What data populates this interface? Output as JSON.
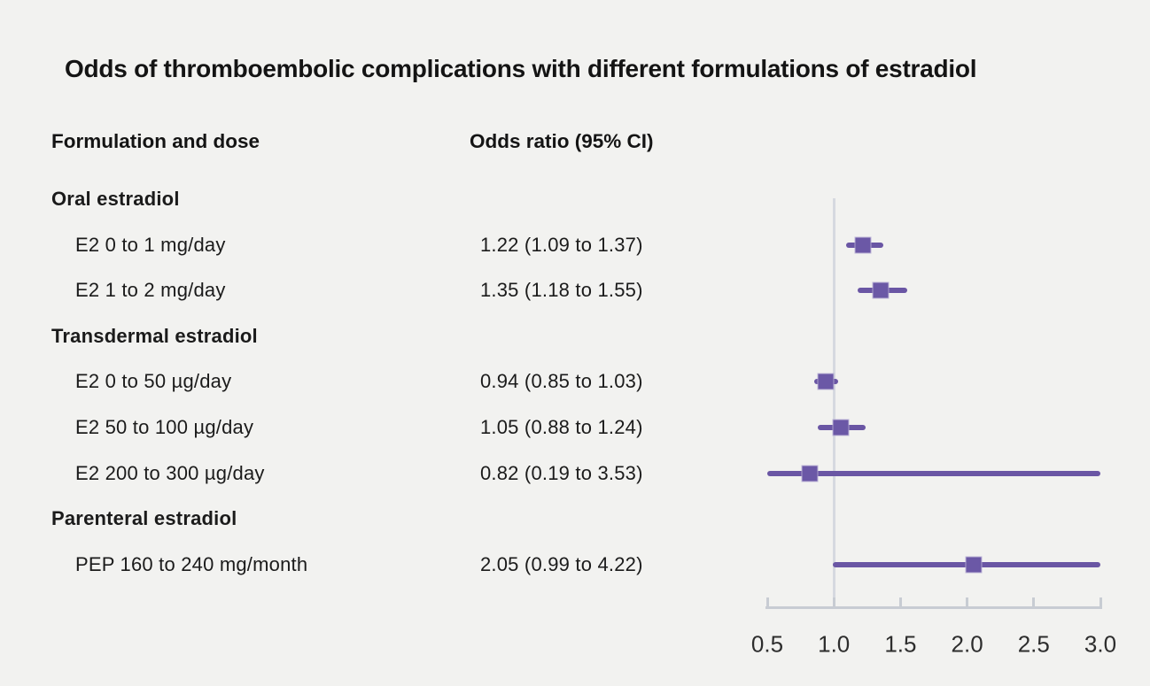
{
  "title": "Odds of thromboembolic complications with different formulations of estradiol",
  "columns": {
    "formulation_header": "Formulation and dose",
    "odds_ratio_header": "Odds ratio (95% CI)"
  },
  "colors": {
    "background": "#f2f2f0",
    "text": "#1b1b1b",
    "marker_purple": "#6b58a6",
    "ci_purple": "#6a56a4",
    "reference_line": "#d6d9e0",
    "axis": "#c8ccd3",
    "tick_label": "#2d2d2d"
  },
  "chart_data": {
    "type": "scatter",
    "subtype": "forest-plot",
    "title": "Odds of thromboembolic complications with different formulations of estradiol",
    "xlabel": "Odds ratio",
    "xlim": [
      0.5,
      3.0
    ],
    "reference_value": 1.0,
    "grid": false,
    "axis_ticks": [
      "0.5",
      "1.0",
      "1.5",
      "2.0",
      "2.5",
      "3.0"
    ],
    "axis_tick_values": [
      0.5,
      1.0,
      1.5,
      2.0,
      2.5,
      3.0
    ],
    "rows": [
      {
        "type": "group",
        "label": "Oral estradiol"
      },
      {
        "type": "item",
        "label": "E2 0 to 1 mg/day",
        "value_text": "1.22 (1.09 to 1.37)",
        "or": 1.22,
        "ci_low": 1.09,
        "ci_high": 1.37
      },
      {
        "type": "item",
        "label": "E2 1 to 2 mg/day",
        "value_text": "1.35 (1.18 to 1.55)",
        "or": 1.35,
        "ci_low": 1.18,
        "ci_high": 1.55
      },
      {
        "type": "group",
        "label": "Transdermal estradiol"
      },
      {
        "type": "item",
        "label": "E2 0 to 50 µg/day",
        "value_text": "0.94 (0.85 to 1.03)",
        "or": 0.94,
        "ci_low": 0.85,
        "ci_high": 1.03
      },
      {
        "type": "item",
        "label": "E2 50 to 100 µg/day",
        "value_text": "1.05 (0.88 to 1.24)",
        "or": 1.05,
        "ci_low": 0.88,
        "ci_high": 1.24
      },
      {
        "type": "item",
        "label": "E2 200 to 300 µg/day",
        "value_text": "0.82 (0.19 to 3.53)",
        "or": 0.82,
        "ci_low": 0.19,
        "ci_high": 3.53
      },
      {
        "type": "group",
        "label": "Parenteral estradiol"
      },
      {
        "type": "item",
        "label": "PEP 160 to 240 mg/month",
        "value_text": "2.05 (0.99 to 4.22)",
        "or": 2.05,
        "ci_low": 0.99,
        "ci_high": 4.22
      }
    ]
  }
}
